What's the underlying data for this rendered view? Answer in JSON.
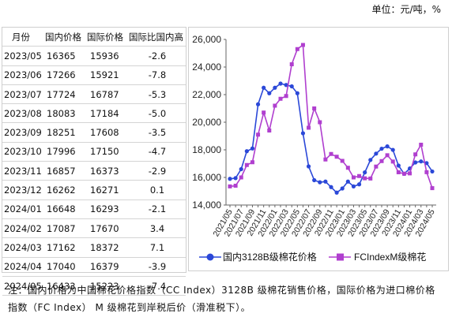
{
  "unit_label": "单位：元/吨，%",
  "table": {
    "headers": [
      "月份",
      "国内价格",
      "国际价格",
      "国际比国内高"
    ],
    "rows": [
      [
        "2023/05",
        "16365",
        "15936",
        "-2.6"
      ],
      [
        "2023/06",
        "17266",
        "15921",
        "-7.8"
      ],
      [
        "2023/07",
        "17724",
        "16787",
        "-5.3"
      ],
      [
        "2023/08",
        "18083",
        "17184",
        "-5.0"
      ],
      [
        "2023/09",
        "18251",
        "17608",
        "-3.5"
      ],
      [
        "2023/10",
        "17996",
        "17150",
        "-4.7"
      ],
      [
        "2023/11",
        "16857",
        "16373",
        "-2.9"
      ],
      [
        "2023/12",
        "16262",
        "16271",
        "0.1"
      ],
      [
        "2024/01",
        "16648",
        "16293",
        "-2.1"
      ],
      [
        "2024/02",
        "17087",
        "17670",
        "3.4"
      ],
      [
        "2024/03",
        "17162",
        "18372",
        "7.1"
      ],
      [
        "2024/04",
        "17040",
        "16379",
        "-3.9"
      ],
      [
        "2024/05",
        "16433",
        "15223",
        "-7.4"
      ]
    ]
  },
  "note_label": "注：国内价格为中国棉花价格指数（CC Index）3128B 级棉花销售价格，国际价格为进口棉价格指数（FC Index） M 级棉花到岸税后价（滑准税下）。",
  "chart_data": {
    "type": "line",
    "title": "",
    "xlabel": "",
    "ylabel": "",
    "ylim": [
      14000,
      26000
    ],
    "yticks": [
      14000,
      16000,
      18000,
      20000,
      22000,
      24000,
      26000
    ],
    "ytick_labels": [
      "14,000",
      "16,000",
      "18,000",
      "20,000",
      "22,000",
      "24,000",
      "26,000"
    ],
    "x": [
      "2021/05",
      "2021/06",
      "2021/07",
      "2021/08",
      "2021/09",
      "2021/10",
      "2021/11",
      "2021/12",
      "2022/01",
      "2022/02",
      "2022/03",
      "2022/04",
      "2022/05",
      "2022/06",
      "2022/07",
      "2022/08",
      "2022/09",
      "2022/10",
      "2022/11",
      "2022/12",
      "2023/01",
      "2023/02",
      "2023/03",
      "2023/04",
      "2023/05",
      "2023/06",
      "2023/07",
      "2023/08",
      "2023/09",
      "2023/10",
      "2023/11",
      "2023/12",
      "2024/01",
      "2024/02",
      "2024/03",
      "2024/04",
      "2024/05"
    ],
    "xtick_labels": [
      "2021/05",
      "2021/07",
      "2021/09",
      "2021/11",
      "2022/01",
      "2022/03",
      "2022/05",
      "2022/07",
      "2022/09",
      "2022/11",
      "2023/01",
      "2023/03",
      "2023/05",
      "2023/07",
      "2023/09",
      "2023/11",
      "2024/01",
      "2024/03",
      "2024/05"
    ],
    "grid": false,
    "legend": "bottom",
    "series": [
      {
        "name": "国内3128B级棉花价格",
        "color": "#2b48d8",
        "marker": "circle",
        "values": [
          15900,
          15950,
          16600,
          17900,
          18100,
          21300,
          22500,
          22100,
          22500,
          22800,
          22700,
          22600,
          22100,
          19200,
          16800,
          15800,
          15650,
          15700,
          15300,
          14900,
          15200,
          15700,
          15350,
          15500,
          16365,
          17266,
          17724,
          18083,
          18251,
          17996,
          16857,
          16262,
          16648,
          17087,
          17162,
          17040,
          16433
        ]
      },
      {
        "name": "FCIndexM级棉花",
        "color": "#b03fcf",
        "marker": "square",
        "values": [
          15350,
          15400,
          16000,
          16900,
          17100,
          19100,
          20700,
          19400,
          21200,
          21700,
          21900,
          24200,
          25300,
          25600,
          19600,
          21000,
          20000,
          17300,
          17700,
          17500,
          17200,
          16700,
          16000,
          16100,
          15936,
          15921,
          16787,
          17184,
          17608,
          17150,
          16373,
          16271,
          16293,
          17670,
          18372,
          16379,
          15223
        ]
      }
    ]
  }
}
